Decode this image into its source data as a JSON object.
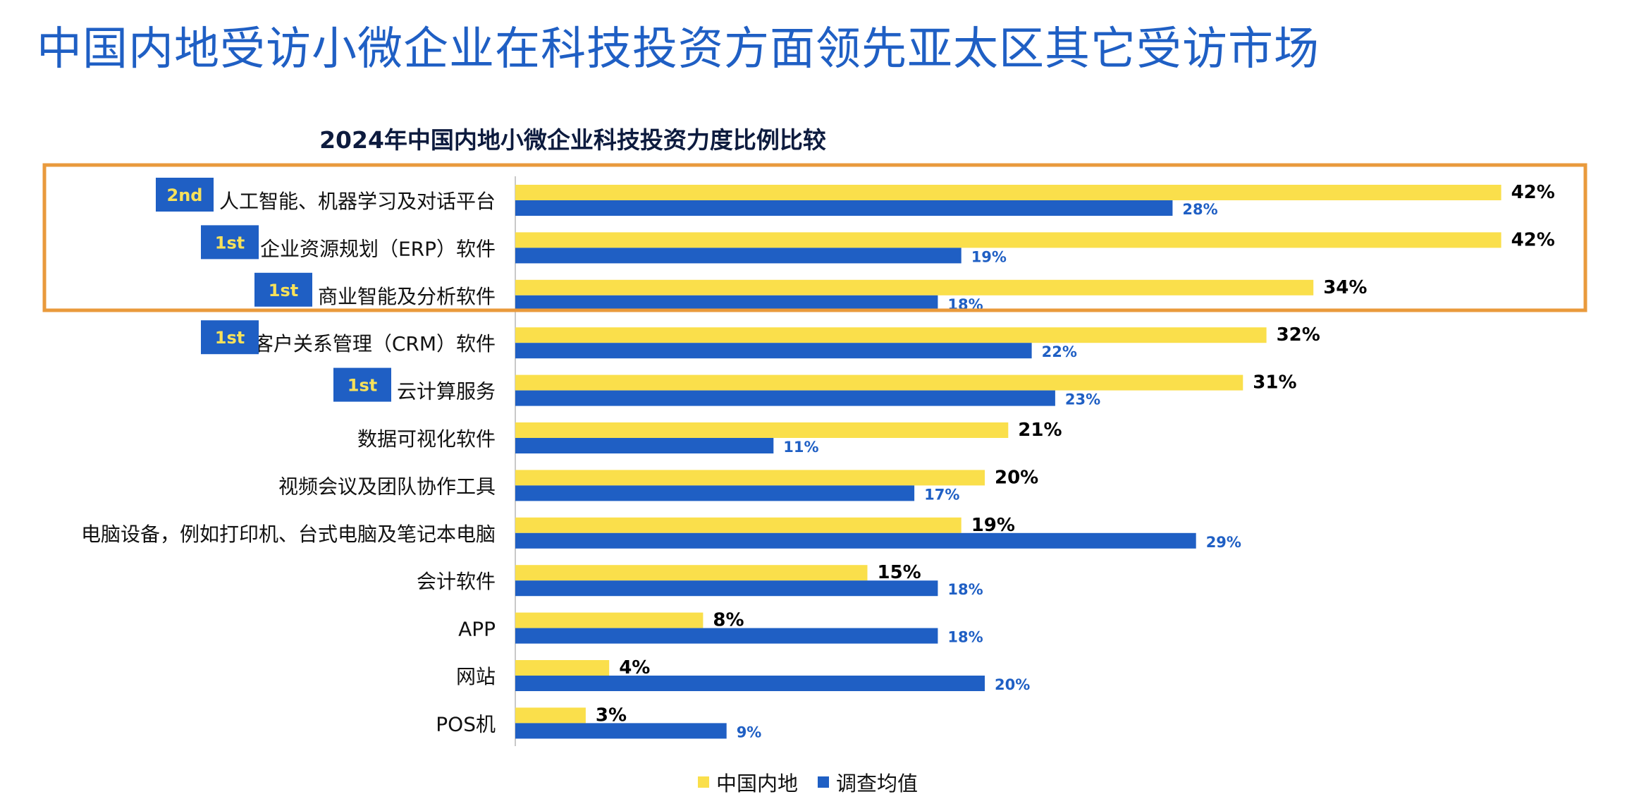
{
  "headline": "中国内地受访小微企业在科技投资方面领先亚太区其它受访市场",
  "colors": {
    "headline": "#1f5fc4",
    "series_mainland": "#fadf4b",
    "series_average": "#1f5fc4",
    "highlight_box": "#e99a3c",
    "badge": "#1f5fc4"
  },
  "legend": {
    "mainland": "中国内地",
    "average": "调查均值"
  },
  "chart_data": {
    "type": "bar",
    "orientation": "horizontal",
    "title": "2024年中国内地小微企业科技投资力度比例比较",
    "categories": [
      "人工智能、机器学习及对话平台",
      "企业资源规划（ERP）软件",
      "商业智能及分析软件",
      "客户关系管理（CRM）软件",
      "云计算服务",
      "数据可视化软件",
      "视频会议及团队协作工具",
      "电脑设备，例如打印机、台式电脑及笔记本电脑",
      "会计软件",
      "APP",
      "网站",
      "POS机"
    ],
    "series": [
      {
        "name": "中国内地",
        "values": [
          42,
          42,
          34,
          32,
          31,
          21,
          20,
          19,
          15,
          8,
          4,
          3
        ]
      },
      {
        "name": "调查均值",
        "values": [
          28,
          19,
          18,
          22,
          23,
          11,
          17,
          29,
          18,
          18,
          20,
          9
        ]
      }
    ],
    "value_labels": {
      "mainland": [
        "42%",
        "42%",
        "34%",
        "32%",
        "31%",
        "21%",
        "20%",
        "19%",
        "15%",
        "8%",
        "4%",
        "3%"
      ],
      "average": [
        "28%",
        "19%",
        "18%",
        "22%",
        "23%",
        "11%",
        "17%",
        "29%",
        "18%",
        "18%",
        "20%",
        "9%"
      ]
    },
    "rank_badges": [
      "2nd",
      "1st",
      "1st",
      "1st",
      "1st",
      null,
      null,
      null,
      null,
      null,
      null,
      null
    ],
    "highlighted_categories": [
      "人工智能、机器学习及对话平台",
      "企业资源规划（ERP）软件",
      "商业智能及分析软件"
    ],
    "xlim": [
      0,
      45
    ],
    "grid": false,
    "legend_position": "bottom-center"
  }
}
